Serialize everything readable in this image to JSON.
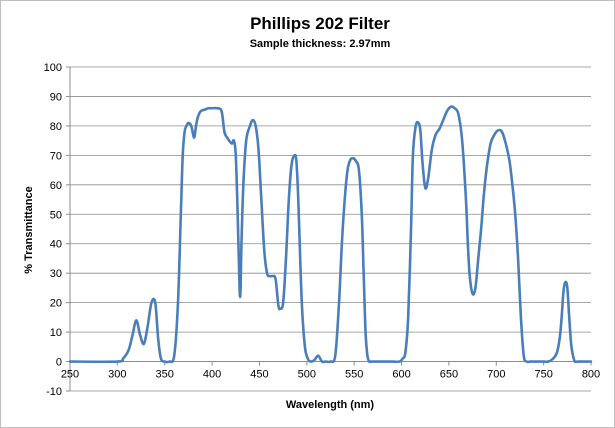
{
  "chart_data": {
    "type": "line",
    "title": "Phillips 202 Filter",
    "subtitle": "Sample thickness: 2.97mm",
    "xlabel": "Wavelength (nm)",
    "ylabel": "% Transmittance",
    "xlim": [
      250,
      800
    ],
    "ylim": [
      -10,
      100
    ],
    "xticks": [
      250,
      300,
      350,
      400,
      450,
      500,
      550,
      600,
      650,
      700,
      750,
      800
    ],
    "yticks": [
      -10,
      0,
      10,
      20,
      30,
      40,
      50,
      60,
      70,
      80,
      90,
      100
    ],
    "grid": true,
    "legend": "none",
    "colors": {
      "line": "#4a7ebb",
      "grid": "#8c8c8c"
    },
    "series": [
      {
        "x": [
          250,
          300,
          306,
          312,
          316,
          320,
          324,
          328,
          332,
          336,
          340,
          343,
          346,
          350,
          355,
          360,
          364,
          367,
          369,
          371,
          373,
          375,
          378,
          381,
          383,
          385,
          388,
          392,
          396,
          400,
          405,
          410,
          413,
          416,
          418,
          421,
          423,
          425,
          427,
          429,
          430,
          431,
          433,
          436,
          440,
          443,
          446,
          449,
          452,
          455,
          458,
          461,
          464,
          467,
          470,
          472,
          475,
          478,
          481,
          484,
          487,
          489,
          491,
          493,
          495,
          498,
          501,
          504,
          508,
          512,
          516,
          520,
          525,
          530,
          534,
          537,
          540,
          543,
          546,
          549,
          552,
          555,
          558,
          560,
          562,
          564,
          566,
          568,
          572,
          580,
          590,
          598,
          601,
          604,
          607,
          610,
          612,
          615,
          618,
          620,
          622,
          625,
          628,
          632,
          636,
          640,
          644,
          648,
          652,
          656,
          660,
          664,
          668,
          670,
          672,
          675,
          678,
          681,
          684,
          687,
          690,
          694,
          698,
          702,
          706,
          710,
          714,
          717,
          720,
          723,
          726,
          729,
          732,
          736,
          740,
          750,
          755,
          760,
          764,
          767,
          769,
          771,
          773,
          775,
          777,
          779,
          781,
          783,
          786,
          790,
          800
        ],
        "y": [
          0,
          0,
          1,
          4,
          9,
          14,
          9,
          6,
          12,
          20,
          20,
          8,
          1,
          0,
          0,
          2,
          20,
          50,
          70,
          78,
          80,
          81,
          80,
          76,
          80,
          83,
          85,
          85.5,
          86,
          86,
          86,
          85,
          78,
          76,
          75,
          74,
          75,
          70,
          50,
          25,
          24,
          40,
          60,
          75,
          80,
          82,
          80,
          72,
          55,
          38,
          30,
          29,
          29,
          28,
          19,
          18,
          20,
          35,
          55,
          67,
          70,
          68,
          55,
          35,
          18,
          5,
          1,
          0,
          0.5,
          2,
          0,
          0,
          0,
          2,
          20,
          40,
          55,
          65,
          68.5,
          69,
          68,
          65,
          50,
          30,
          10,
          2,
          0,
          0,
          0,
          0,
          0,
          0,
          1,
          3,
          15,
          45,
          70,
          80,
          81,
          78,
          68,
          59,
          62,
          72,
          77,
          79,
          82,
          85,
          86.5,
          86,
          84,
          75,
          55,
          40,
          29,
          23,
          25,
          35,
          45,
          57,
          66,
          74,
          77,
          78.5,
          78,
          74,
          68,
          60,
          50,
          35,
          15,
          2,
          0,
          0,
          0,
          0,
          0,
          1,
          3,
          8,
          15,
          24,
          27,
          25,
          15,
          6,
          2,
          0,
          0,
          0,
          0
        ]
      }
    ]
  }
}
